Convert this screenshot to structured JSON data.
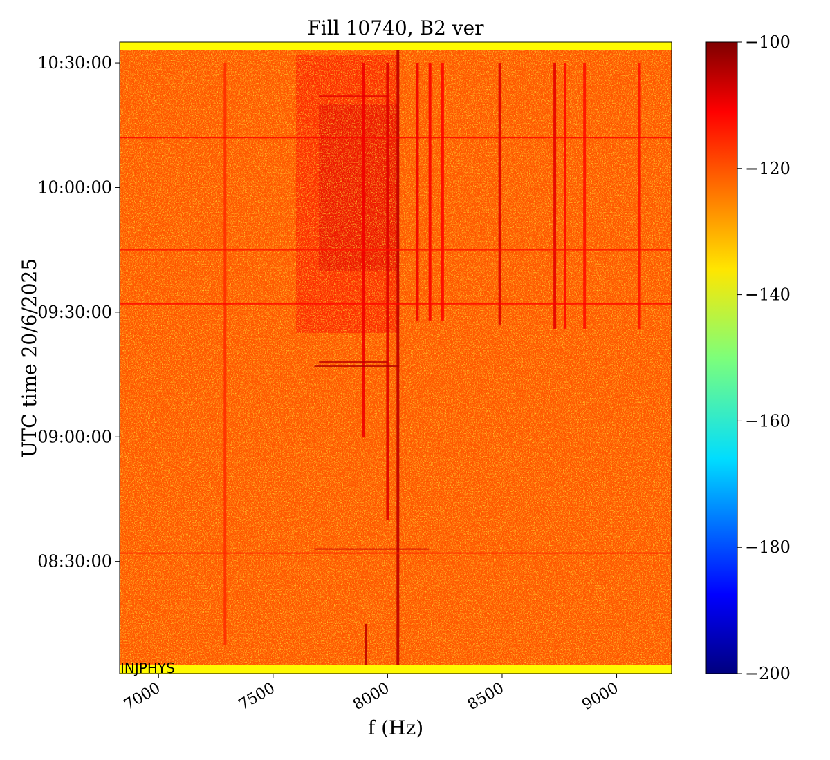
{
  "chart_data": {
    "type": "heatmap",
    "title": "Fill 10740, B2 ver",
    "xlabel": "f (Hz)",
    "ylabel": "UTC time 20/6/2025",
    "corner_label": "INJPHYS",
    "xlim": [
      6830,
      9240
    ],
    "x_ticks": [
      7000,
      7500,
      8000,
      8500,
      9000
    ],
    "x_tick_labels": [
      "7000",
      "7500",
      "8000",
      "8500",
      "9000"
    ],
    "y_ticks": [
      {
        "label": "10:30:00",
        "minutes": 150
      },
      {
        "label": "10:00:00",
        "minutes": 120
      },
      {
        "label": "09:30:00",
        "minutes": 90
      },
      {
        "label": "09:00:00",
        "minutes": 60
      },
      {
        "label": "08:30:00",
        "minutes": 30
      }
    ],
    "ylim_minutes_after_0800": [
      3,
      155
    ],
    "colorbar": {
      "colormap": "jet",
      "range": [
        -200,
        -100
      ],
      "ticks": [
        -100,
        -120,
        -140,
        -160,
        -180,
        -200
      ],
      "tick_labels": [
        "−100",
        "−120",
        "−140",
        "−160",
        "−180",
        "−200"
      ]
    },
    "background_level": -121,
    "edge_band_level": -137,
    "spectral_lines": [
      {
        "f": 8045,
        "level": -106,
        "t_start": 3,
        "t_end": 153
      },
      {
        "f": 8000,
        "level": -109,
        "t_start": 40,
        "t_end": 150
      },
      {
        "f": 7895,
        "level": -111,
        "t_start": 60,
        "t_end": 150
      },
      {
        "f": 7905,
        "level": -106,
        "t_start": 5,
        "t_end": 15
      },
      {
        "f": 8130,
        "level": -111,
        "t_start": 88,
        "t_end": 150
      },
      {
        "f": 8185,
        "level": -112,
        "t_start": 88,
        "t_end": 150
      },
      {
        "f": 8240,
        "level": -113,
        "t_start": 88,
        "t_end": 150
      },
      {
        "f": 8490,
        "level": -109,
        "t_start": 87,
        "t_end": 150
      },
      {
        "f": 8730,
        "level": -110,
        "t_start": 86,
        "t_end": 150
      },
      {
        "f": 8775,
        "level": -113,
        "t_start": 86,
        "t_end": 150
      },
      {
        "f": 8860,
        "level": -114,
        "t_start": 86,
        "t_end": 150
      },
      {
        "f": 9100,
        "level": -114,
        "t_start": 86,
        "t_end": 150
      },
      {
        "f": 7290,
        "level": -117,
        "t_start": 10,
        "t_end": 150
      }
    ],
    "broadband_patches": [
      {
        "f_start": 7600,
        "f_end": 8050,
        "t_start": 85,
        "t_end": 152,
        "level": -112
      },
      {
        "f_start": 7700,
        "f_end": 8050,
        "t_start": 100,
        "t_end": 140,
        "level": -109
      }
    ],
    "time_lines": [
      {
        "t": 33,
        "f_start": 7680,
        "f_end": 8180,
        "level": -107
      },
      {
        "t": 32,
        "f_start": 6830,
        "f_end": 9240,
        "level": -116
      },
      {
        "t": 77,
        "f_start": 7680,
        "f_end": 8050,
        "level": -105
      },
      {
        "t": 78,
        "f_start": 7700,
        "f_end": 8000,
        "level": -106
      },
      {
        "t": 92,
        "f_start": 6830,
        "f_end": 9240,
        "level": -113
      },
      {
        "t": 105,
        "f_start": 6830,
        "f_end": 9240,
        "level": -114
      },
      {
        "t": 132,
        "f_start": 6830,
        "f_end": 9240,
        "level": -112
      },
      {
        "t": 142,
        "f_start": 7700,
        "f_end": 8000,
        "level": -110
      }
    ]
  }
}
